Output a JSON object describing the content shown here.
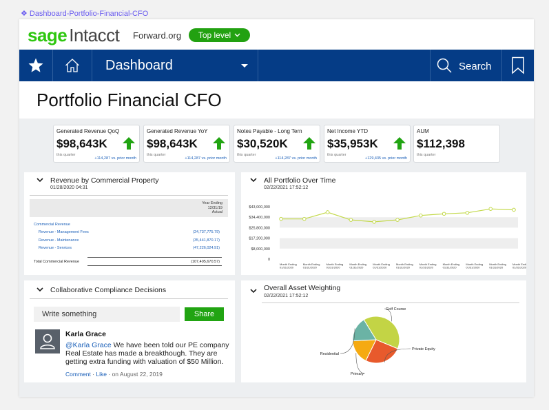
{
  "frame_label": "Dashboard-Portfolio-Financial-CFO",
  "brand": {
    "sage": "sage",
    "intacct": "Intacct",
    "org": "Forward.org",
    "level_button": "Top level"
  },
  "nav": {
    "title": "Dashboard",
    "search": "Search"
  },
  "page_title": "Portfolio Financial CFO",
  "kpis": [
    {
      "title": "Generated Revenue QoQ",
      "value": "$98,643K",
      "sub": "this quarter",
      "delta": "+114,287 vs. prior month",
      "arrow": true
    },
    {
      "title": "Generated Revenue YoY",
      "value": "$98,643K",
      "sub": "this quarter",
      "delta": "+114,287 vs. prior month",
      "arrow": true
    },
    {
      "title": "Notes Payable - Long Tern",
      "value": "$30,520K",
      "sub": "this quarter",
      "delta": "+114,287 vs. prior month",
      "arrow": true
    },
    {
      "title": "Net Income YTD",
      "value": "$35,953K",
      "sub": "this quarter",
      "delta": "+129,435 vs. prior month",
      "arrow": true
    },
    {
      "title": "AUM",
      "value": "$112,398",
      "sub": "this quarter",
      "delta": "",
      "arrow": false
    }
  ],
  "revenue_widget": {
    "title": "Revenue by Commercial Property",
    "date": "01/28/2020 04:31",
    "col_head": [
      "Year Ending",
      "12/31/19",
      "Actual"
    ],
    "section": "Commercial Revenue",
    "rows": [
      {
        "label": "Revenue - Management Fees",
        "value": "(24,737,775.79)"
      },
      {
        "label": "Revenue - Maintenance",
        "value": "(35,441,870.17)"
      },
      {
        "label": "Revenue - Services",
        "value": "(47,226,024.91)"
      }
    ],
    "total_label": "Total Commercial Revenue",
    "total_value": "(107,405,670.57)"
  },
  "portfolio_widget": {
    "title": "All Portfolio Over Time",
    "date": "02/22/2021 17:52:12"
  },
  "compliance_widget": {
    "title": "Collaborative Compliance Decisions",
    "input_placeholder": "Write something",
    "share_label": "Share",
    "post": {
      "author": "Karla Grace",
      "mention": "@Karla Grace",
      "text": " We have been told our PE company Real Estate has made a breakthough. They are getting extra funding with valuation of $50 Million.",
      "comment": "Comment",
      "like": "Like",
      "date": "on August 22, 2019"
    }
  },
  "asset_widget": {
    "title": "Overall Asset Weighting",
    "date": "02/22/2021 17:52:12"
  },
  "chart_data": [
    {
      "type": "line",
      "title": "All Portfolio Over Time",
      "y_tick_labels": [
        "$43,000,000",
        "$34,400,000",
        "$25,800,000",
        "$17,200,000",
        "$8,000,000",
        "0"
      ],
      "ylim": [
        0,
        43000000
      ],
      "x": [
        "Month Ending 01/31/2020",
        "Month Ending 01/31/2020",
        "Month Ending 01/31/2020",
        "Month Ending 01/31/2020",
        "Month Ending 01/31/2020",
        "Month Ending 01/31/2020",
        "Month Ending 01/31/2020",
        "Month Ending 01/31/2020",
        "Month Ending 01/31/2020",
        "Month Ending 01/31/2020",
        "Month Ending 01/31/2020"
      ],
      "values": [
        33000000,
        33000000,
        38500000,
        32200000,
        30600000,
        32200000,
        35800000,
        37200000,
        38000000,
        41200000,
        40500000
      ],
      "color": "#c3d94a",
      "grid": true
    },
    {
      "type": "pie",
      "title": "Overall Asset Weighting",
      "slices": [
        {
          "label": "Golf Course",
          "value": 40,
          "color": "#c3d445"
        },
        {
          "label": "Private Equity",
          "value": 26,
          "color": "#e85a2c"
        },
        {
          "label": "Primary",
          "value": 17,
          "color": "#f5aa12"
        },
        {
          "label": "Residential",
          "value": 17,
          "color": "#6bb3a5"
        }
      ]
    }
  ]
}
